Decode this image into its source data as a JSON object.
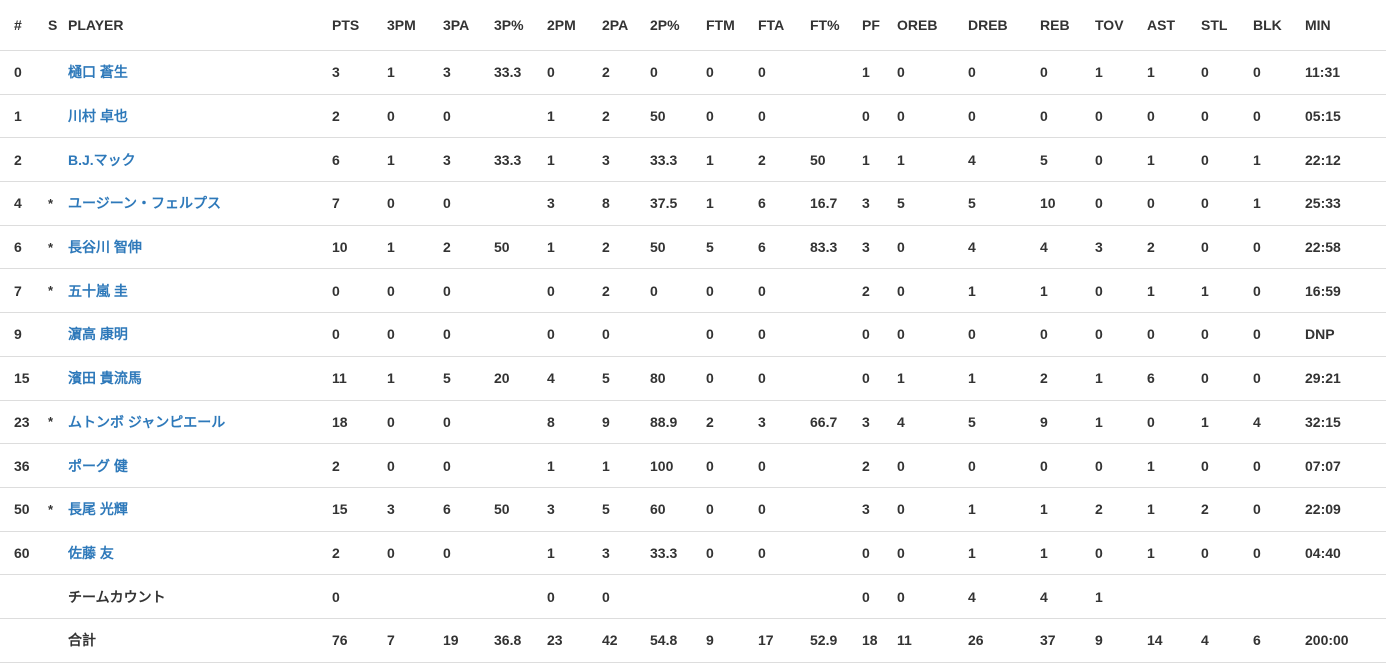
{
  "table": {
    "columns": [
      {
        "key": "num",
        "label": "#"
      },
      {
        "key": "s",
        "label": "S"
      },
      {
        "key": "player",
        "label": "PLAYER"
      },
      {
        "key": "pts",
        "label": "PTS"
      },
      {
        "key": "3pm",
        "label": "3PM"
      },
      {
        "key": "3pa",
        "label": "3PA"
      },
      {
        "key": "3ppct",
        "label": "3P%"
      },
      {
        "key": "2pm",
        "label": "2PM"
      },
      {
        "key": "2pa",
        "label": "2PA"
      },
      {
        "key": "2ppct",
        "label": "2P%"
      },
      {
        "key": "ftm",
        "label": "FTM"
      },
      {
        "key": "fta",
        "label": "FTA"
      },
      {
        "key": "ftpct",
        "label": "FT%"
      },
      {
        "key": "pf",
        "label": "PF"
      },
      {
        "key": "oreb",
        "label": "OREB"
      },
      {
        "key": "dreb",
        "label": "DREB"
      },
      {
        "key": "reb",
        "label": "REB"
      },
      {
        "key": "tov",
        "label": "TOV"
      },
      {
        "key": "ast",
        "label": "AST"
      },
      {
        "key": "stl",
        "label": "STL"
      },
      {
        "key": "blk",
        "label": "BLK"
      },
      {
        "key": "min",
        "label": "MIN"
      }
    ],
    "rows": [
      {
        "num": "0",
        "starter": "",
        "player": "樋口 蒼生",
        "link": true,
        "stats": [
          "3",
          "1",
          "3",
          "33.3",
          "0",
          "2",
          "0",
          "0",
          "0",
          "",
          "1",
          "0",
          "0",
          "0",
          "1",
          "1",
          "0",
          "0",
          "11:31"
        ]
      },
      {
        "num": "1",
        "starter": "",
        "player": "川村 卓也",
        "link": true,
        "stats": [
          "2",
          "0",
          "0",
          "",
          "1",
          "2",
          "50",
          "0",
          "0",
          "",
          "0",
          "0",
          "0",
          "0",
          "0",
          "0",
          "0",
          "0",
          "05:15"
        ]
      },
      {
        "num": "2",
        "starter": "",
        "player": "B.J.マック",
        "link": true,
        "stats": [
          "6",
          "1",
          "3",
          "33.3",
          "1",
          "3",
          "33.3",
          "1",
          "2",
          "50",
          "1",
          "1",
          "4",
          "5",
          "0",
          "1",
          "0",
          "1",
          "22:12"
        ]
      },
      {
        "num": "4",
        "starter": "*",
        "player": "ユージーン・フェルプス",
        "link": true,
        "stats": [
          "7",
          "0",
          "0",
          "",
          "3",
          "8",
          "37.5",
          "1",
          "6",
          "16.7",
          "3",
          "5",
          "5",
          "10",
          "0",
          "0",
          "0",
          "1",
          "25:33"
        ]
      },
      {
        "num": "6",
        "starter": "*",
        "player": "長谷川 智伸",
        "link": true,
        "stats": [
          "10",
          "1",
          "2",
          "50",
          "1",
          "2",
          "50",
          "5",
          "6",
          "83.3",
          "3",
          "0",
          "4",
          "4",
          "3",
          "2",
          "0",
          "0",
          "22:58"
        ]
      },
      {
        "num": "7",
        "starter": "*",
        "player": "五十嵐 圭",
        "link": true,
        "stats": [
          "0",
          "0",
          "0",
          "",
          "0",
          "2",
          "0",
          "0",
          "0",
          "",
          "2",
          "0",
          "1",
          "1",
          "0",
          "1",
          "1",
          "0",
          "16:59"
        ]
      },
      {
        "num": "9",
        "starter": "",
        "player": "濵高 康明",
        "link": true,
        "stats": [
          "0",
          "0",
          "0",
          "",
          "0",
          "0",
          "",
          "0",
          "0",
          "",
          "0",
          "0",
          "0",
          "0",
          "0",
          "0",
          "0",
          "0",
          "DNP"
        ]
      },
      {
        "num": "15",
        "starter": "",
        "player": "濱田 貴流馬",
        "link": true,
        "stats": [
          "11",
          "1",
          "5",
          "20",
          "4",
          "5",
          "80",
          "0",
          "0",
          "",
          "0",
          "1",
          "1",
          "2",
          "1",
          "6",
          "0",
          "0",
          "29:21"
        ]
      },
      {
        "num": "23",
        "starter": "*",
        "player": "ムトンボ ジャンピエール",
        "link": true,
        "stats": [
          "18",
          "0",
          "0",
          "",
          "8",
          "9",
          "88.9",
          "2",
          "3",
          "66.7",
          "3",
          "4",
          "5",
          "9",
          "1",
          "0",
          "1",
          "4",
          "32:15"
        ]
      },
      {
        "num": "36",
        "starter": "",
        "player": "ポーグ 健",
        "link": true,
        "stats": [
          "2",
          "0",
          "0",
          "",
          "1",
          "1",
          "100",
          "0",
          "0",
          "",
          "2",
          "0",
          "0",
          "0",
          "0",
          "1",
          "0",
          "0",
          "07:07"
        ]
      },
      {
        "num": "50",
        "starter": "*",
        "player": "長尾 光輝",
        "link": true,
        "stats": [
          "15",
          "3",
          "6",
          "50",
          "3",
          "5",
          "60",
          "0",
          "0",
          "",
          "3",
          "0",
          "1",
          "1",
          "2",
          "1",
          "2",
          "0",
          "22:09"
        ]
      },
      {
        "num": "60",
        "starter": "",
        "player": "佐藤 友",
        "link": true,
        "stats": [
          "2",
          "0",
          "0",
          "",
          "1",
          "3",
          "33.3",
          "0",
          "0",
          "",
          "0",
          "0",
          "1",
          "1",
          "0",
          "1",
          "0",
          "0",
          "04:40"
        ]
      },
      {
        "num": "",
        "starter": "",
        "player": "チームカウント",
        "link": false,
        "stats": [
          "0",
          "",
          "",
          "",
          "0",
          "0",
          "",
          "",
          "",
          "",
          "0",
          "0",
          "4",
          "4",
          "1",
          "",
          "",
          "",
          ""
        ]
      },
      {
        "num": "",
        "starter": "",
        "player": "合計",
        "link": false,
        "stats": [
          "76",
          "7",
          "19",
          "36.8",
          "23",
          "42",
          "54.8",
          "9",
          "17",
          "52.9",
          "18",
          "11",
          "26",
          "37",
          "9",
          "14",
          "4",
          "6",
          "200:00"
        ]
      }
    ]
  },
  "colors": {
    "link_blue": "#2e79ba",
    "text": "#333333",
    "row_border": "#dddddd",
    "background": "#ffffff"
  }
}
